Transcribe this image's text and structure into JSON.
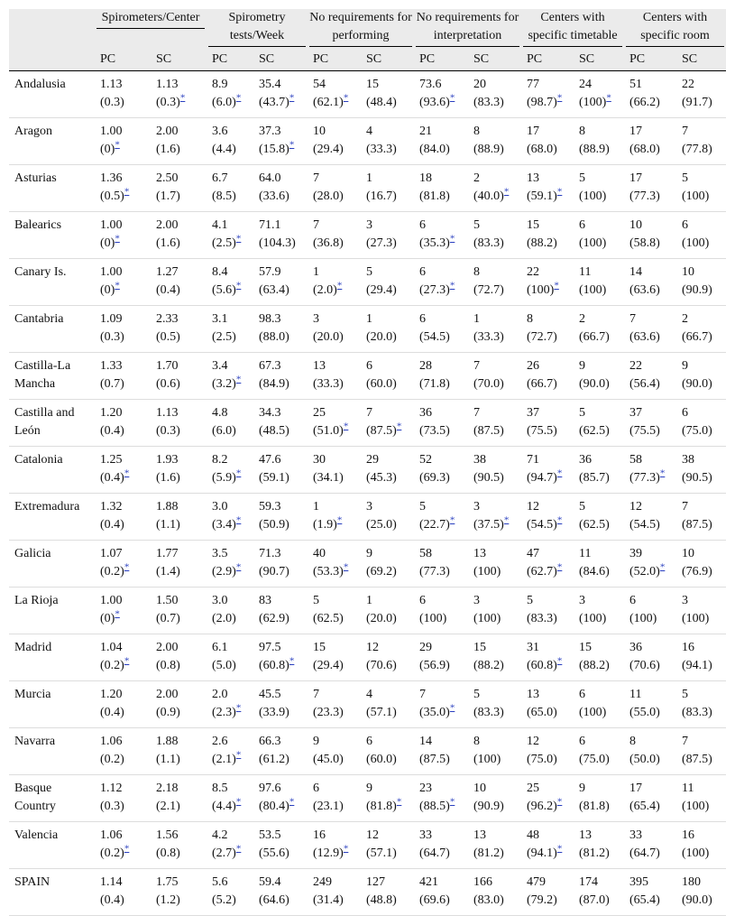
{
  "table": {
    "groups": [
      "Spirometers/Center",
      "Spirometry tests/Week",
      "No requirements for performing",
      "No requirements for interpretation",
      "Centers with specific timetable",
      "Centers with specific room"
    ],
    "subheaders": [
      "PC",
      "SC"
    ],
    "rows": [
      {
        "region": "Andalusia",
        "cells": [
          [
            "1.13",
            "(0.3)"
          ],
          [
            "1.13",
            "(0.3)",
            "*"
          ],
          [
            "8.9",
            "(6.0)",
            "*"
          ],
          [
            "35.4",
            "(43.7)",
            "*"
          ],
          [
            "54",
            "(62.1)",
            "*"
          ],
          [
            "15",
            "(48.4)"
          ],
          [
            "73.6",
            "(93.6)",
            "*"
          ],
          [
            "20",
            "(83.3)"
          ],
          [
            "77",
            "(98.7)",
            "*"
          ],
          [
            "24",
            "(100)",
            "*"
          ],
          [
            "51",
            "(66.2)"
          ],
          [
            "22",
            "(91.7)"
          ]
        ]
      },
      {
        "region": "Aragon",
        "cells": [
          [
            "1.00",
            "(0)",
            "*"
          ],
          [
            "2.00",
            "(1.6)"
          ],
          [
            "3.6",
            "(4.4)"
          ],
          [
            "37.3",
            "(15.8)",
            "*"
          ],
          [
            "10",
            "(29.4)"
          ],
          [
            "4",
            "(33.3)"
          ],
          [
            "21",
            "(84.0)"
          ],
          [
            "8",
            "(88.9)"
          ],
          [
            "17",
            "(68.0)"
          ],
          [
            "8",
            "(88.9)"
          ],
          [
            "17",
            "(68.0)"
          ],
          [
            "7",
            "(77.8)"
          ]
        ]
      },
      {
        "region": "Asturias",
        "cells": [
          [
            "1.36",
            "(0.5)",
            "*"
          ],
          [
            "2.50",
            "(1.7)"
          ],
          [
            "6.7",
            "(8.5)"
          ],
          [
            "64.0",
            "(33.6)"
          ],
          [
            "7",
            "(28.0)"
          ],
          [
            "1",
            "(16.7)"
          ],
          [
            "18",
            "(81.8)"
          ],
          [
            "2",
            "(40.0)",
            "*"
          ],
          [
            "13",
            "(59.1)",
            "*"
          ],
          [
            "5",
            "(100)"
          ],
          [
            "17",
            "(77.3)"
          ],
          [
            "5",
            "(100)"
          ]
        ]
      },
      {
        "region": "Balearics",
        "cells": [
          [
            "1.00",
            "(0)",
            "*"
          ],
          [
            "2.00",
            "(1.6)"
          ],
          [
            "4.1",
            "(2.5)",
            "*"
          ],
          [
            "71.1",
            "(104.3)"
          ],
          [
            "7",
            "(36.8)"
          ],
          [
            "3",
            "(27.3)"
          ],
          [
            "6",
            "(35.3)",
            "*"
          ],
          [
            "5",
            "(83.3)"
          ],
          [
            "15",
            "(88.2)"
          ],
          [
            "6",
            "(100)"
          ],
          [
            "10",
            "(58.8)"
          ],
          [
            "6",
            "(100)"
          ]
        ]
      },
      {
        "region": "Canary Is.",
        "cells": [
          [
            "1.00",
            "(0)",
            "*"
          ],
          [
            "1.27",
            "(0.4)"
          ],
          [
            "8.4",
            "(5.6)",
            "*"
          ],
          [
            "57.9",
            "(63.4)"
          ],
          [
            "1",
            "(2.0)",
            "*"
          ],
          [
            "5",
            "(29.4)"
          ],
          [
            "6",
            "(27.3)",
            "*"
          ],
          [
            "8",
            "(72.7)"
          ],
          [
            "22",
            "(100)",
            "*"
          ],
          [
            "11",
            "(100)"
          ],
          [
            "14",
            "(63.6)"
          ],
          [
            "10",
            "(90.9)"
          ]
        ]
      },
      {
        "region": "Cantabria",
        "cells": [
          [
            "1.09",
            "(0.3)"
          ],
          [
            "2.33",
            "(0.5)"
          ],
          [
            "3.1",
            "(2.5)"
          ],
          [
            "98.3",
            "(88.0)"
          ],
          [
            "3",
            "(20.0)"
          ],
          [
            "1",
            "(20.0)"
          ],
          [
            "6",
            "(54.5)"
          ],
          [
            "1",
            "(33.3)"
          ],
          [
            "8",
            "(72.7)"
          ],
          [
            "2",
            "(66.7)"
          ],
          [
            "7",
            "(63.6)"
          ],
          [
            "2",
            "(66.7)"
          ]
        ]
      },
      {
        "region": "Castilla-La Mancha",
        "cells": [
          [
            "1.33",
            "(0.7)"
          ],
          [
            "1.70",
            "(0.6)"
          ],
          [
            "3.4",
            "(3.2)",
            "*"
          ],
          [
            "67.3",
            "(84.9)"
          ],
          [
            "13",
            "(33.3)"
          ],
          [
            "6",
            "(60.0)"
          ],
          [
            "28",
            "(71.8)"
          ],
          [
            "7",
            "(70.0)"
          ],
          [
            "26",
            "(66.7)"
          ],
          [
            "9",
            "(90.0)"
          ],
          [
            "22",
            "(56.4)"
          ],
          [
            "9",
            "(90.0)"
          ]
        ]
      },
      {
        "region": "Castilla and León",
        "cells": [
          [
            "1.20",
            "(0.4)"
          ],
          [
            "1.13",
            "(0.3)"
          ],
          [
            "4.8",
            "(6.0)"
          ],
          [
            "34.3",
            "(48.5)"
          ],
          [
            "25",
            "(51.0)",
            "*"
          ],
          [
            "7",
            "(87.5)",
            "*"
          ],
          [
            "36",
            "(73.5)"
          ],
          [
            "7",
            "(87.5)"
          ],
          [
            "37",
            "(75.5)"
          ],
          [
            "5",
            "(62.5)"
          ],
          [
            "37",
            "(75.5)"
          ],
          [
            "6",
            "(75.0)"
          ]
        ]
      },
      {
        "region": "Catalonia",
        "cells": [
          [
            "1.25",
            "(0.4)",
            "*"
          ],
          [
            "1.93",
            "(1.6)"
          ],
          [
            "8.2",
            "(5.9)",
            "*"
          ],
          [
            "47.6",
            "(59.1)"
          ],
          [
            "30",
            "(34.1)"
          ],
          [
            "29",
            "(45.3)"
          ],
          [
            "52",
            "(69.3)"
          ],
          [
            "38",
            "(90.5)"
          ],
          [
            "71",
            "(94.7)",
            "*"
          ],
          [
            "36",
            "(85.7)"
          ],
          [
            "58",
            "(77.3)",
            "*"
          ],
          [
            "38",
            "(90.5)"
          ]
        ]
      },
      {
        "region": "Extremadura",
        "cells": [
          [
            "1.32",
            "(0.4)"
          ],
          [
            "1.88",
            "(1.1)"
          ],
          [
            "3.0",
            "(3.4)",
            "*"
          ],
          [
            "59.3",
            "(50.9)"
          ],
          [
            "1",
            "(1.9)",
            "*"
          ],
          [
            "3",
            "(25.0)"
          ],
          [
            "5",
            "(22.7)",
            "*"
          ],
          [
            "3",
            "(37.5)",
            "*"
          ],
          [
            "12",
            "(54.5)",
            "*"
          ],
          [
            "5",
            "(62.5)"
          ],
          [
            "12",
            "(54.5)"
          ],
          [
            "7",
            "(87.5)"
          ]
        ]
      },
      {
        "region": "Galicia",
        "cells": [
          [
            "1.07",
            "(0.2)",
            "*"
          ],
          [
            "1.77",
            "(1.4)"
          ],
          [
            "3.5",
            "(2.9)",
            "*"
          ],
          [
            "71.3",
            "(90.7)"
          ],
          [
            "40",
            "(53.3)",
            "*"
          ],
          [
            "9",
            "(69.2)"
          ],
          [
            "58",
            "(77.3)"
          ],
          [
            "13",
            "(100)"
          ],
          [
            "47",
            "(62.7)",
            "*"
          ],
          [
            "11",
            "(84.6)"
          ],
          [
            "39",
            "(52.0)",
            "*"
          ],
          [
            "10",
            "(76.9)"
          ]
        ]
      },
      {
        "region": "La Rioja",
        "cells": [
          [
            "1.00",
            "(0)",
            "*"
          ],
          [
            "1.50",
            "(0.7)"
          ],
          [
            "3.0",
            "(2.0)"
          ],
          [
            "83",
            "(62.9)"
          ],
          [
            "5",
            "(62.5)"
          ],
          [
            "1",
            "(20.0)"
          ],
          [
            "6",
            "(100)"
          ],
          [
            "3",
            "(100)"
          ],
          [
            "5",
            "(83.3)"
          ],
          [
            "3",
            "(100)"
          ],
          [
            "6",
            "(100)"
          ],
          [
            "3",
            "(100)"
          ]
        ]
      },
      {
        "region": "Madrid",
        "cells": [
          [
            "1.04",
            "(0.2)",
            "*"
          ],
          [
            "2.00",
            "(0.8)"
          ],
          [
            "6.1",
            "(5.0)"
          ],
          [
            "97.5",
            "(60.8)",
            "*"
          ],
          [
            "15",
            "(29.4)"
          ],
          [
            "12",
            "(70.6)"
          ],
          [
            "29",
            "(56.9)"
          ],
          [
            "15",
            "(88.2)"
          ],
          [
            "31",
            "(60.8)",
            "*"
          ],
          [
            "15",
            "(88.2)"
          ],
          [
            "36",
            "(70.6)"
          ],
          [
            "16",
            "(94.1)"
          ]
        ]
      },
      {
        "region": "Murcia",
        "cells": [
          [
            "1.20",
            "(0.4)"
          ],
          [
            "2.00",
            "(0.9)"
          ],
          [
            "2.0",
            "(2.3)",
            "*"
          ],
          [
            "45.5",
            "(33.9)"
          ],
          [
            "7",
            "(23.3)"
          ],
          [
            "4",
            "(57.1)"
          ],
          [
            "7",
            "(35.0)",
            "*"
          ],
          [
            "5",
            "(83.3)"
          ],
          [
            "13",
            "(65.0)"
          ],
          [
            "6",
            "(100)"
          ],
          [
            "11",
            "(55.0)"
          ],
          [
            "5",
            "(83.3)"
          ]
        ]
      },
      {
        "region": "Navarra",
        "cells": [
          [
            "1.06",
            "(0.2)"
          ],
          [
            "1.88",
            "(1.1)"
          ],
          [
            "2.6",
            "(2.1)",
            "*"
          ],
          [
            "66.3",
            "(61.2)"
          ],
          [
            "9",
            "(45.0)"
          ],
          [
            "6",
            "(60.0)"
          ],
          [
            "14",
            "(87.5)"
          ],
          [
            "8",
            "(100)"
          ],
          [
            "12",
            "(75.0)"
          ],
          [
            "6",
            "(75.0)"
          ],
          [
            "8",
            "(50.0)"
          ],
          [
            "7",
            "(87.5)"
          ]
        ]
      },
      {
        "region": "Basque Country",
        "cells": [
          [
            "1.12",
            "(0.3)"
          ],
          [
            "2.18",
            "(2.1)"
          ],
          [
            "8.5",
            "(4.4)",
            "*"
          ],
          [
            "97.6",
            "(80.4)",
            "*"
          ],
          [
            "6",
            "(23.1)"
          ],
          [
            "9",
            "(81.8)",
            "*"
          ],
          [
            "23",
            "(88.5)",
            "*"
          ],
          [
            "10",
            "(90.9)"
          ],
          [
            "25",
            "(96.2)",
            "*"
          ],
          [
            "9",
            "(81.8)"
          ],
          [
            "17",
            "(65.4)"
          ],
          [
            "11",
            "(100)"
          ]
        ]
      },
      {
        "region": "Valencia",
        "cells": [
          [
            "1.06",
            "(0.2)",
            "*"
          ],
          [
            "1.56",
            "(0.8)"
          ],
          [
            "4.2",
            "(2.7)",
            "*"
          ],
          [
            "53.5",
            "(55.6)"
          ],
          [
            "16",
            "(12.9)",
            "*"
          ],
          [
            "12",
            "(57.1)"
          ],
          [
            "33",
            "(64.7)"
          ],
          [
            "13",
            "(81.2)"
          ],
          [
            "48",
            "(94.1)",
            "*"
          ],
          [
            "13",
            "(81.2)"
          ],
          [
            "33",
            "(64.7)"
          ],
          [
            "16",
            "(100)"
          ]
        ]
      },
      {
        "region": "SPAIN",
        "cells": [
          [
            "1.14",
            "(0.4)"
          ],
          [
            "1.75",
            "(1.2)"
          ],
          [
            "5.6",
            "(5.2)"
          ],
          [
            "59.4",
            "(64.6)"
          ],
          [
            "249",
            "(31.4)"
          ],
          [
            "127",
            "(48.8)"
          ],
          [
            "421",
            "(69.6)"
          ],
          [
            "166",
            "(83.0)"
          ],
          [
            "479",
            "(79.2)"
          ],
          [
            "174",
            "(87.0)"
          ],
          [
            "395",
            "(65.4)"
          ],
          [
            "180",
            "(90.0)"
          ]
        ]
      }
    ]
  }
}
